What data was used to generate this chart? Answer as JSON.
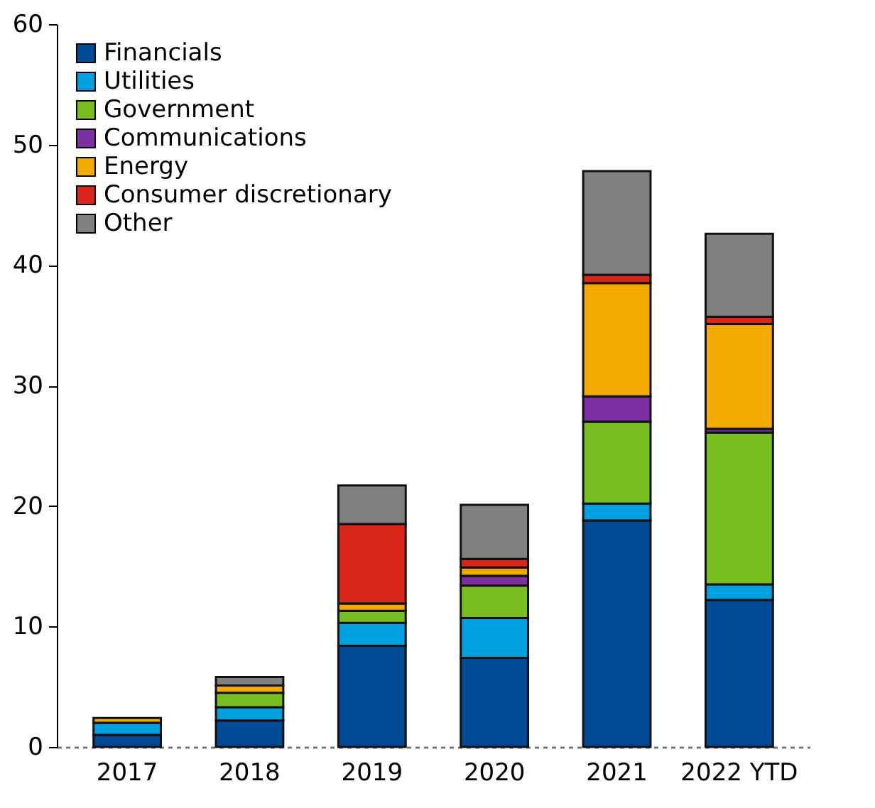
{
  "chart_data": {
    "type": "bar",
    "stacked": true,
    "legend": "top left",
    "categories": [
      "2017",
      "2018",
      "2019",
      "2020",
      "2021",
      "2022 YTD"
    ],
    "ylim": [
      0,
      60
    ],
    "yticks": [
      0,
      10,
      20,
      30,
      40,
      50,
      60
    ],
    "series": [
      {
        "name": "Financials",
        "color": "#004a96",
        "values": [
          1.0,
          2.2,
          8.4,
          7.4,
          18.8,
          12.2
        ]
      },
      {
        "name": "Utilities",
        "color": "#009fdf",
        "values": [
          1.0,
          1.1,
          1.9,
          3.3,
          1.4,
          1.3
        ]
      },
      {
        "name": "Government",
        "color": "#78be20",
        "values": [
          null,
          1.2,
          1.0,
          2.7,
          6.8,
          12.6
        ]
      },
      {
        "name": "Communications",
        "color": "#7b2fa0",
        "values": [
          null,
          null,
          null,
          0.8,
          2.1,
          0.3
        ]
      },
      {
        "name": "Energy",
        "color": "#f2a900",
        "values": [
          0.4,
          0.6,
          0.6,
          0.7,
          9.4,
          8.7
        ]
      },
      {
        "name": "Consumer discretionary",
        "color": "#d9261c",
        "values": [
          null,
          null,
          6.6,
          0.7,
          0.7,
          0.6
        ]
      },
      {
        "name": "Other",
        "color": "#808080",
        "values": [
          null,
          0.7,
          3.2,
          4.5,
          8.6,
          6.9
        ]
      }
    ]
  }
}
